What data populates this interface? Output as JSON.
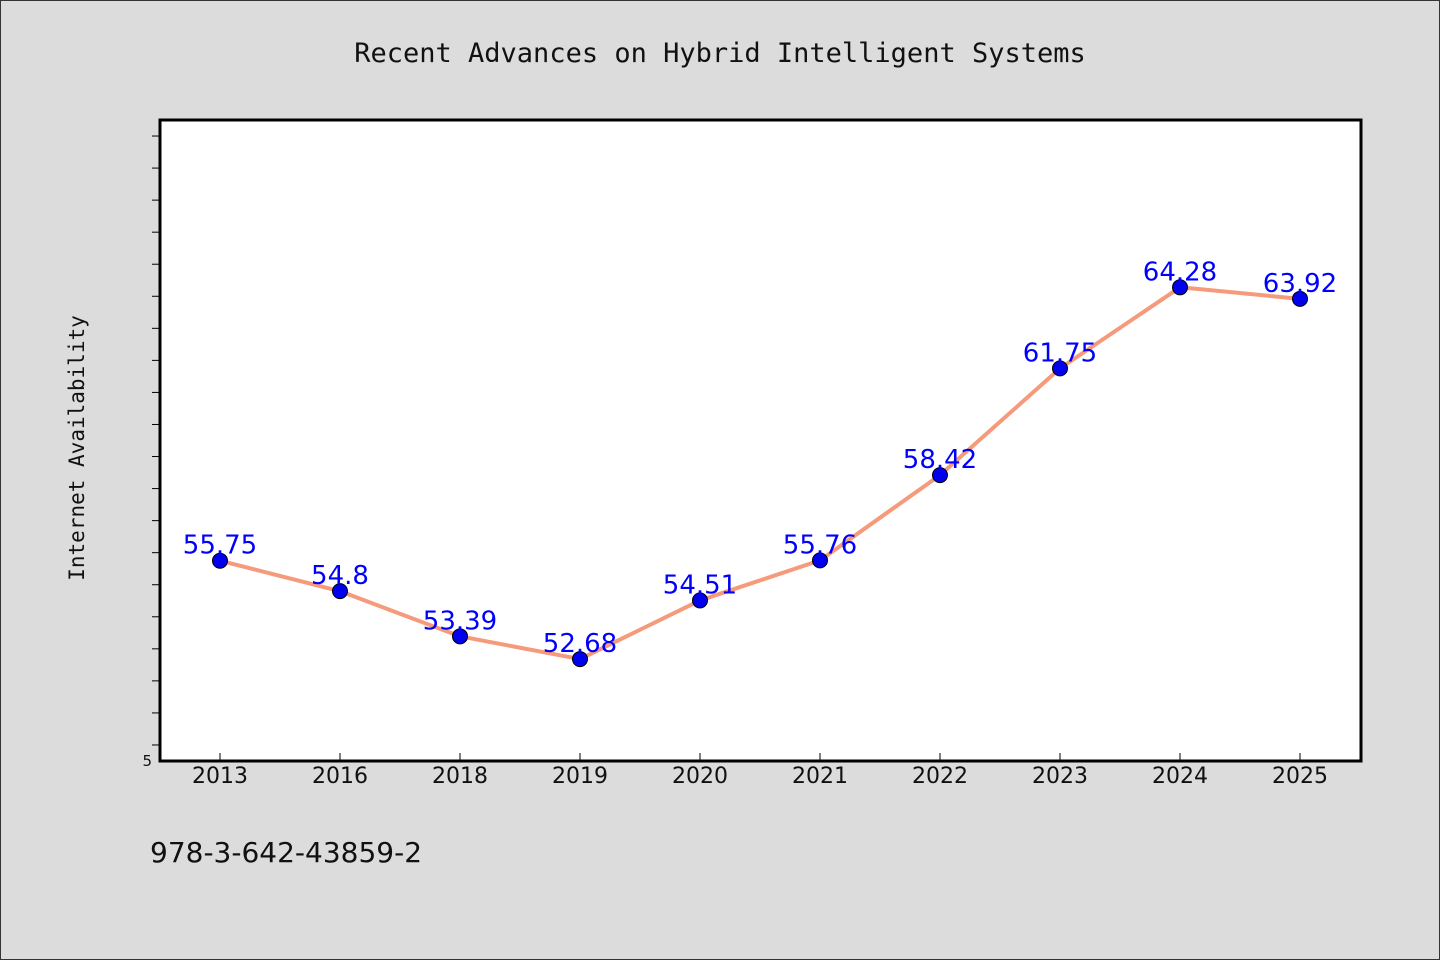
{
  "chart_data": {
    "type": "line",
    "title": "Recent Advances on Hybrid Intelligent Systems",
    "xlabel": "",
    "ylabel": "Internet Availability",
    "categories": [
      "2013",
      "2016",
      "2018",
      "2019",
      "2020",
      "2021",
      "2022",
      "2023",
      "2024",
      "2025"
    ],
    "series": [
      {
        "values": [
          55.75,
          54.8,
          53.39,
          52.68,
          54.51,
          55.76,
          58.42,
          61.75,
          64.28,
          63.92
        ]
      }
    ],
    "ylim": [
      49.5,
      69.5
    ],
    "y_tick_labels": [
      {
        "value": 49.5,
        "label": "5"
      }
    ],
    "grid": false,
    "legend": "none",
    "data_labels": true,
    "colors": {
      "line": "#f59a7a",
      "marker": "#0000ee",
      "label": "#0000ff",
      "plot_bg": "#ffffff",
      "page_bg": "#dcdcdc"
    }
  },
  "footer": {
    "isbn": "978-3-642-43859-2"
  }
}
